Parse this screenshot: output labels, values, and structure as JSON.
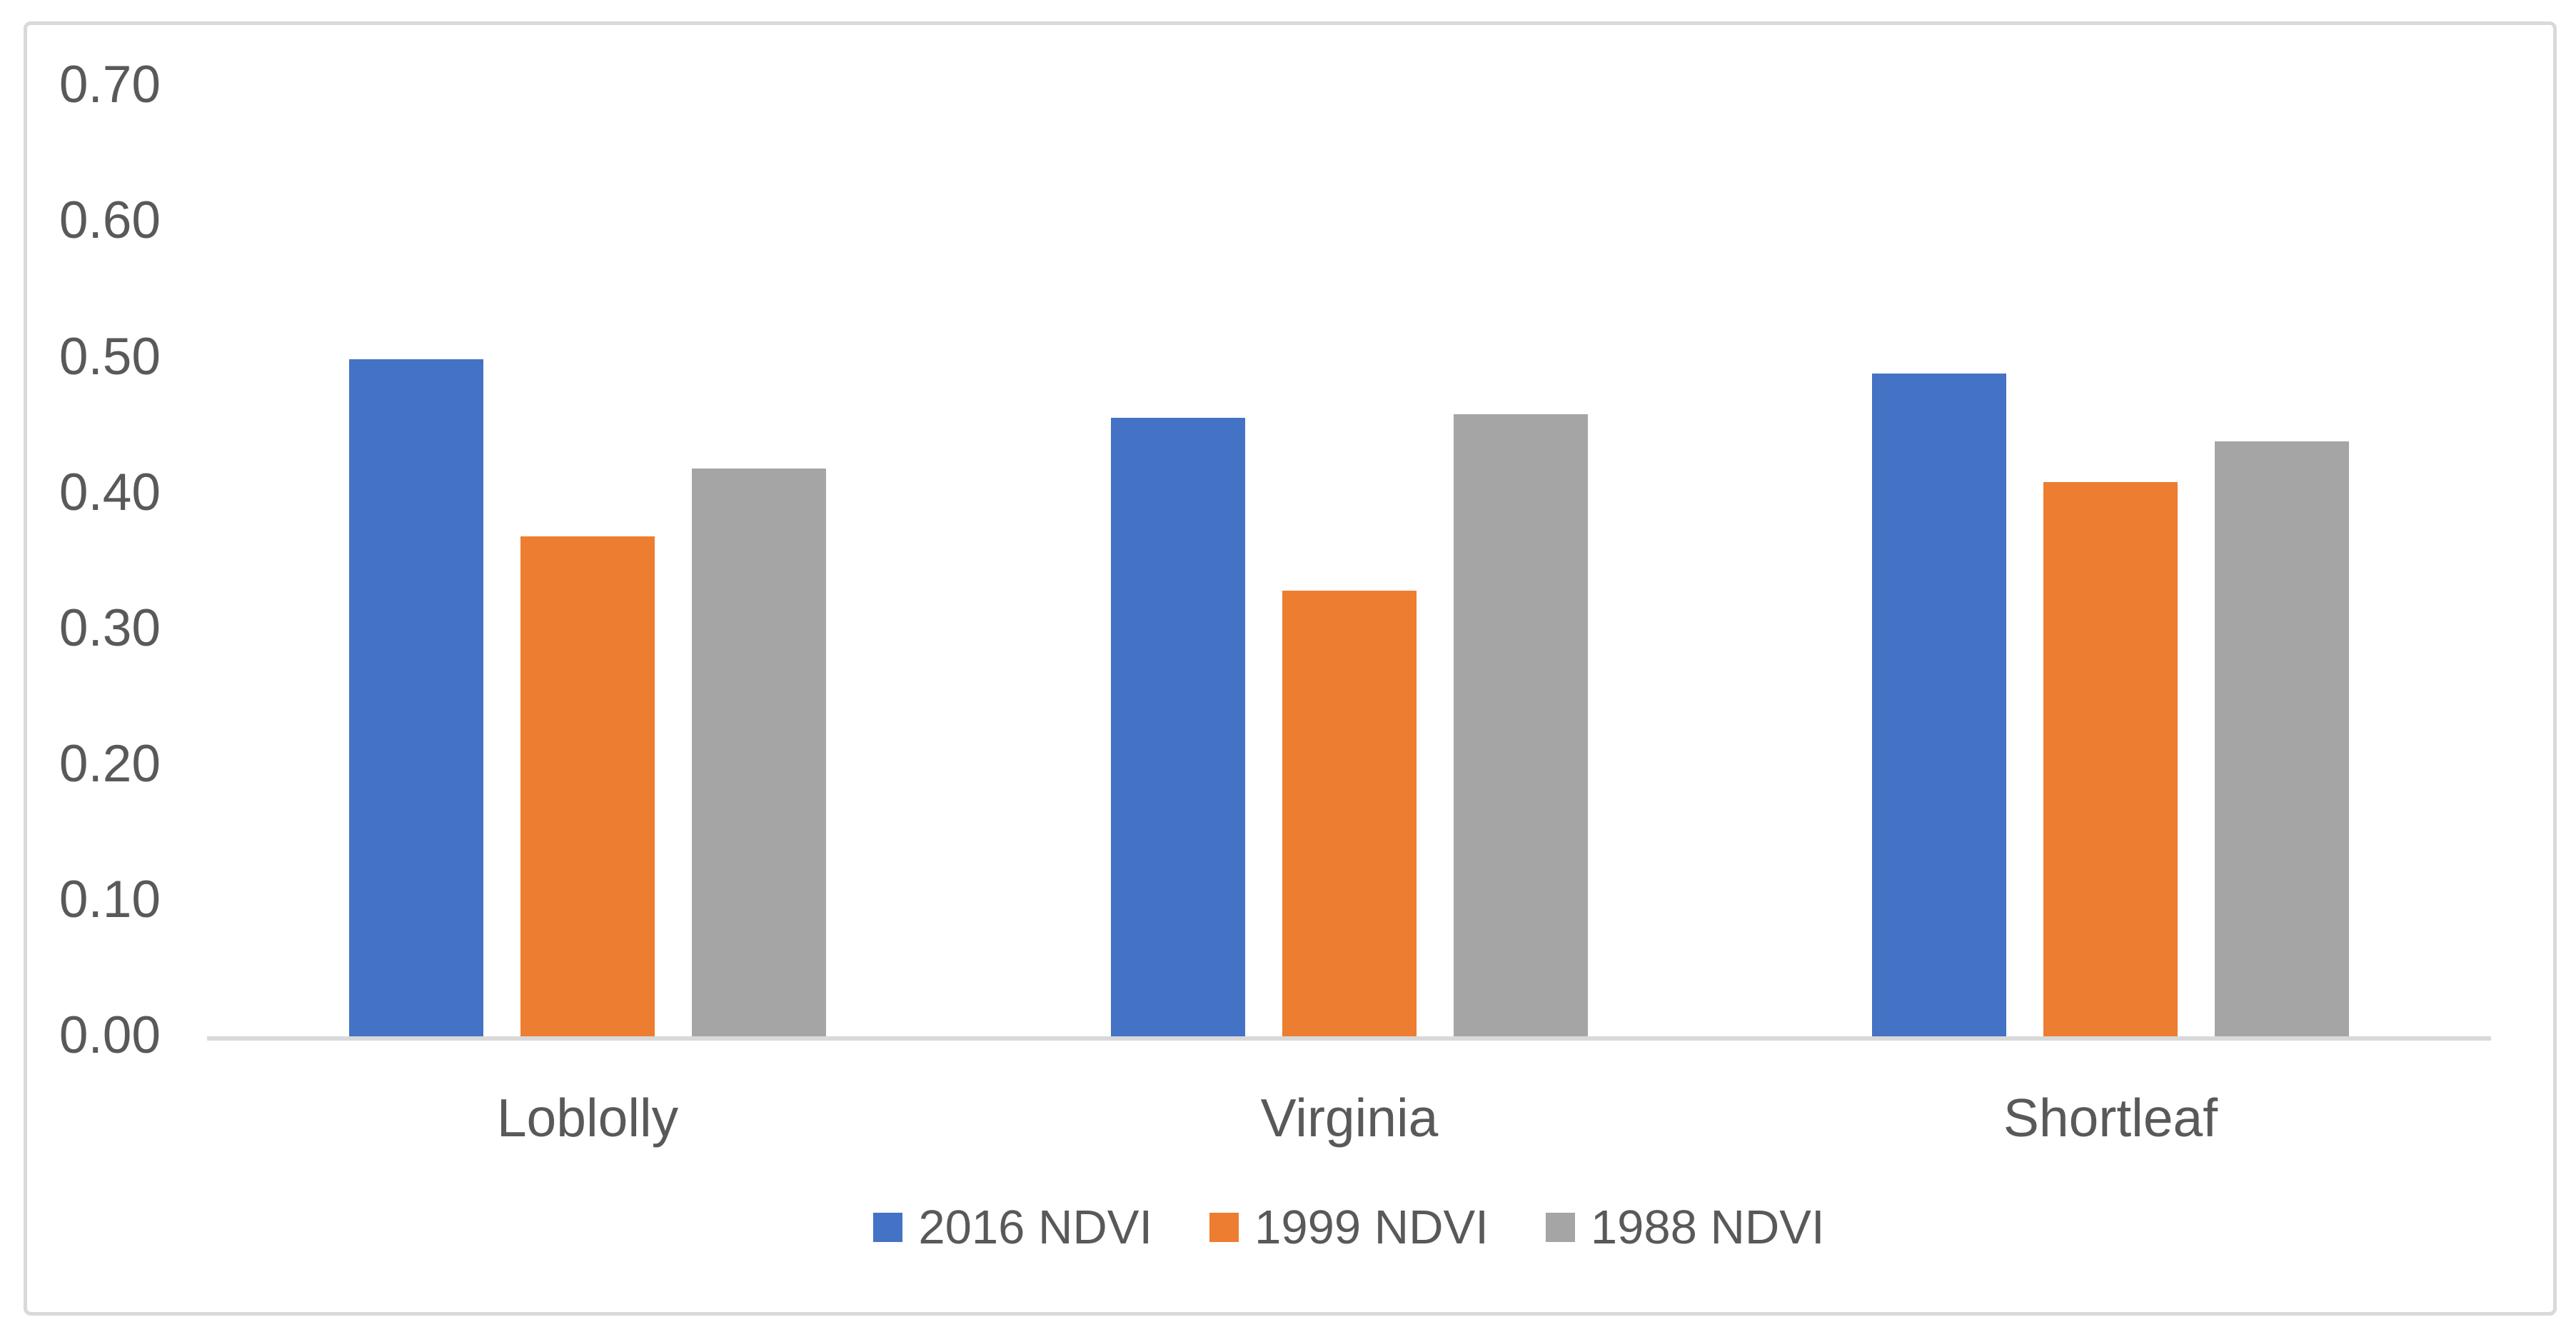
{
  "chart_data": {
    "type": "bar",
    "categories": [
      "Loblolly",
      "Virginia",
      "Shortleaf"
    ],
    "series": [
      {
        "name": "2016 NDVI",
        "color": "#4472C4",
        "values": [
          0.5,
          0.457,
          0.49
        ]
      },
      {
        "name": "1999 NDVI",
        "color": "#ED7D31",
        "values": [
          0.37,
          0.33,
          0.41
        ]
      },
      {
        "name": "1988 NDVI",
        "color": "#A5A5A5",
        "values": [
          0.42,
          0.46,
          0.44
        ]
      }
    ],
    "yticks": [
      "0.00",
      "0.10",
      "0.20",
      "0.30",
      "0.40",
      "0.50",
      "0.60",
      "0.70"
    ],
    "ytick_values": [
      0.0,
      0.1,
      0.2,
      0.3,
      0.4,
      0.5,
      0.6,
      0.7
    ],
    "ylim": [
      0.0,
      0.7
    ],
    "xlabel": "",
    "ylabel": "",
    "grid": false,
    "legend_position": "bottom"
  },
  "style": {
    "background": "#FFFFFF",
    "frame_border_color": "#D9D9D9",
    "axis_line_color": "#D9D9D9",
    "text_color": "#595959"
  }
}
